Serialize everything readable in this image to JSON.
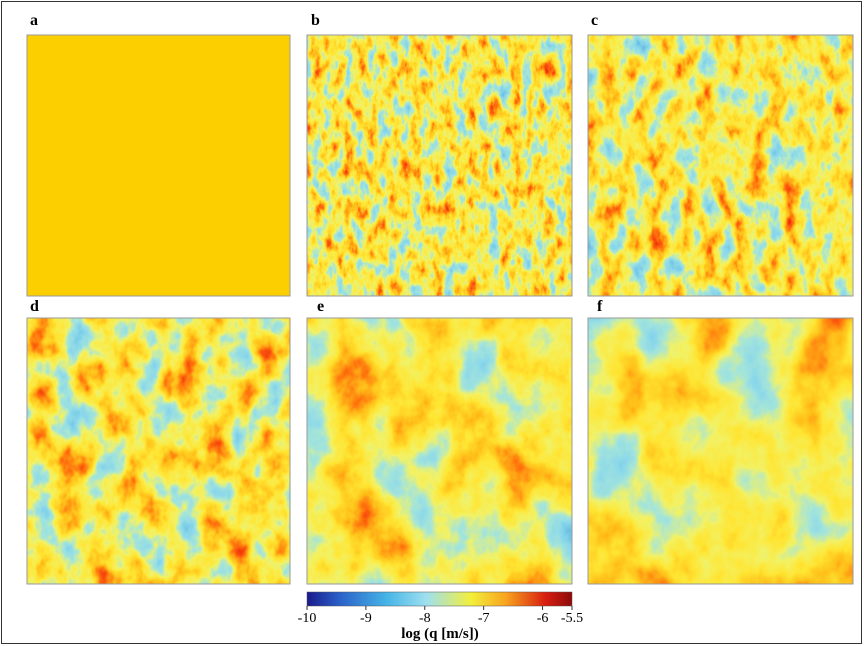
{
  "panels": [
    {
      "label": "a"
    },
    {
      "label": "b"
    },
    {
      "label": "c"
    },
    {
      "label": "d"
    },
    {
      "label": "e"
    },
    {
      "label": "f"
    }
  ],
  "colorbar": {
    "lim": [
      -10,
      -5.5
    ],
    "ticks": [
      -10,
      -9,
      -8,
      -7,
      -6,
      -5.5
    ],
    "label": "log (q [m/s])"
  }
}
